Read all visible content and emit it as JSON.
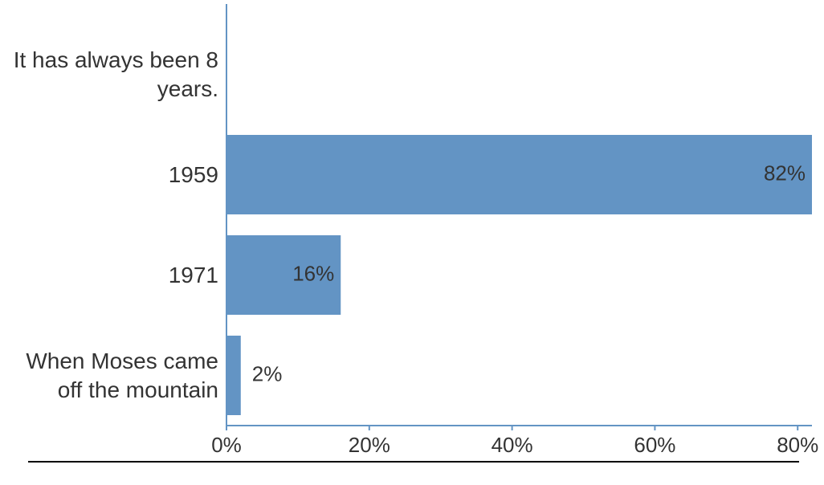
{
  "chart_data": {
    "type": "bar",
    "orientation": "horizontal",
    "categories": [
      "It has always been 8 years.",
      "1959",
      "1971",
      "When Moses came off the mountain"
    ],
    "values": [
      0,
      82,
      16,
      2
    ],
    "value_labels": [
      null,
      "82%",
      "16%",
      "2%"
    ],
    "color": "#6394c4",
    "xlim": [
      0,
      82
    ],
    "xticks": [
      {
        "value": 0,
        "label": "0%"
      },
      {
        "value": 20,
        "label": "20%"
      },
      {
        "value": 40,
        "label": "40%"
      },
      {
        "value": 60,
        "label": "60%"
      },
      {
        "value": 80,
        "label": "80%"
      }
    ]
  }
}
